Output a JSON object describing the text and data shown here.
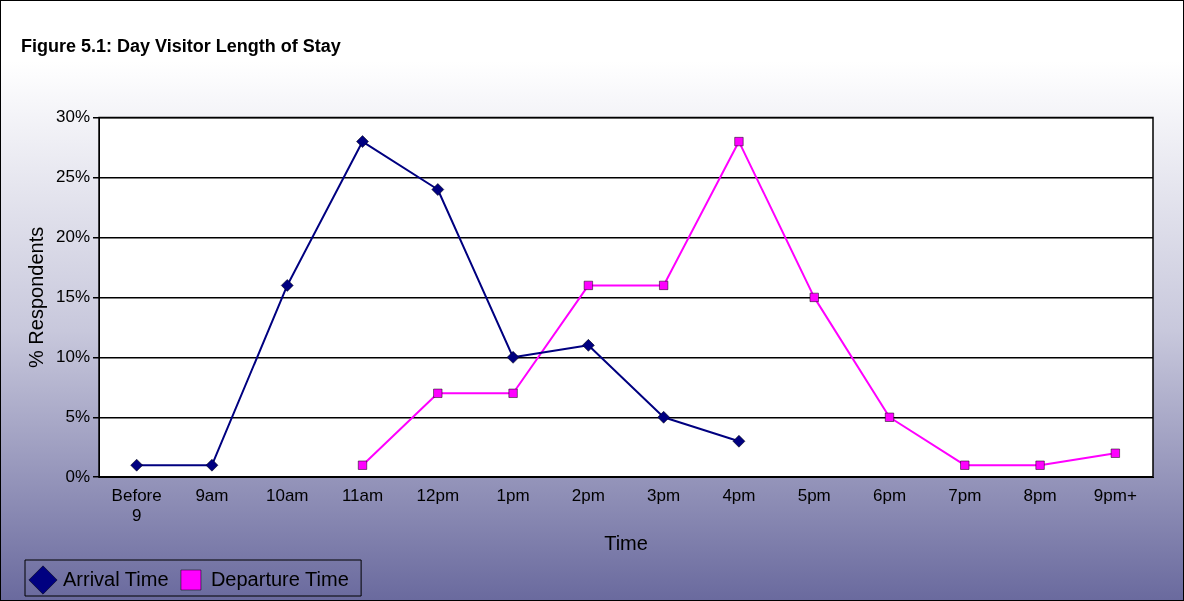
{
  "chart_data": {
    "type": "line",
    "title": "Figure 5.1: Day Visitor Length of Stay",
    "xlabel": "Time",
    "ylabel": "% Respondents",
    "categories": [
      "Before 9",
      "9am",
      "10am",
      "11am",
      "12pm",
      "1pm",
      "2pm",
      "3pm",
      "4pm",
      "5pm",
      "6pm",
      "7pm",
      "8pm",
      "9pm+"
    ],
    "series": [
      {
        "name": "Arrival Time",
        "color": "#000080",
        "marker": "diamond",
        "values": [
          1,
          1,
          16,
          28,
          24,
          10,
          11,
          5,
          3,
          null,
          null,
          null,
          null,
          null
        ]
      },
      {
        "name": "Departure Time",
        "color": "#ff00ff",
        "marker": "square",
        "values": [
          null,
          null,
          null,
          1,
          7,
          7,
          16,
          16,
          28,
          15,
          5,
          1,
          1,
          2
        ]
      }
    ],
    "ylim": [
      0,
      30
    ],
    "yticks": [
      {
        "value": 0,
        "label": "0%"
      },
      {
        "value": 5,
        "label": "5%"
      },
      {
        "value": 10,
        "label": "10%"
      },
      {
        "value": 15,
        "label": "15%"
      },
      {
        "value": 20,
        "label": "20%"
      },
      {
        "value": 25,
        "label": "25%"
      },
      {
        "value": 30,
        "label": "30%"
      }
    ],
    "grid": "y",
    "legend": "bottom left",
    "line_style": "solid"
  }
}
